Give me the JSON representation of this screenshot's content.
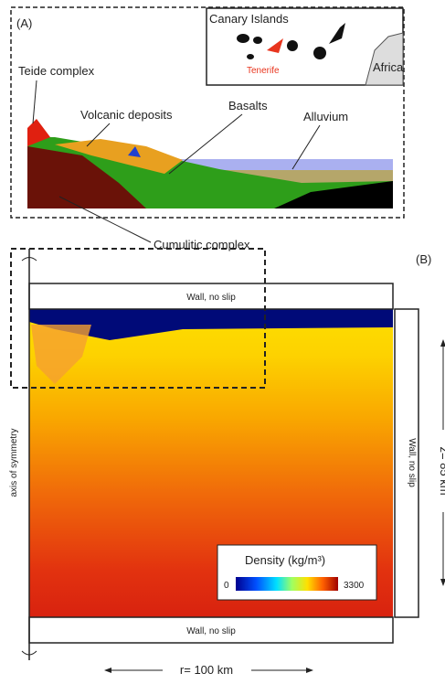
{
  "panel_a": {
    "label": "(A)",
    "map": {
      "title": "Canary Islands",
      "island": "Tenerife",
      "continent": "Africa"
    },
    "units": [
      "Teide complex",
      "Volcanic deposits",
      "Basalts",
      "Alluvium",
      "Cumulitic complex"
    ]
  },
  "panel_b": {
    "label": "(B)",
    "top_wall": "Wall, no slip",
    "right_wall": "Wall, no slip",
    "bottom_wall": "Wall, no slip",
    "axis": "axis of symmetry",
    "depth": "z= 85 km",
    "width": "r= 100 km",
    "colorbar": {
      "title": "Density  (kg/m³)",
      "min": 0,
      "max": 3300
    }
  }
}
